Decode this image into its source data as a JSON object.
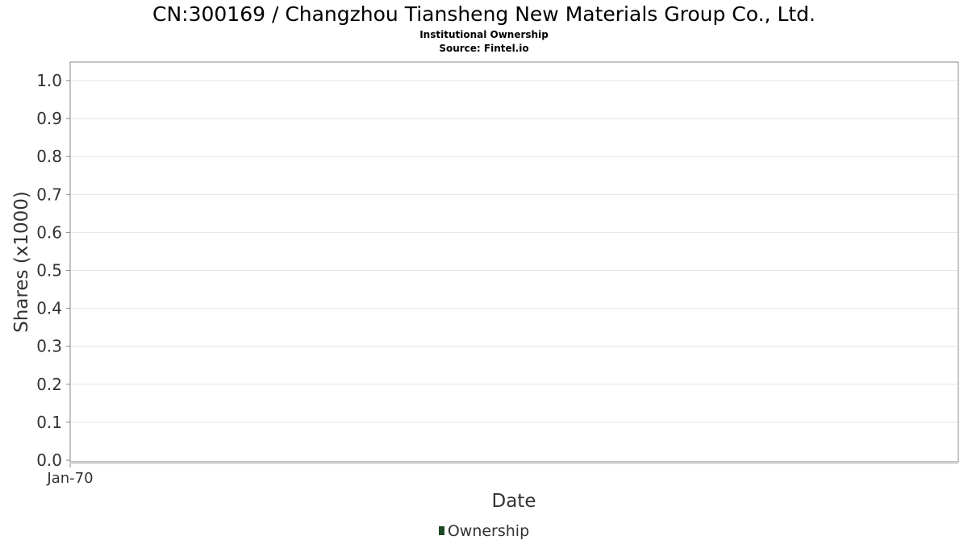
{
  "title": "CN:300169 / Changzhou Tiansheng New Materials Group Co., Ltd.",
  "subtitle_1": "Institutional Ownership",
  "subtitle_2": "Source: Fintel.io",
  "chart_data": {
    "type": "bar",
    "title": "CN:300169 / Changzhou Tiansheng New Materials Group Co., Ltd.",
    "xlabel": "Date",
    "ylabel": "Shares (x1000)",
    "x_tick_labels": [
      "Jan-70"
    ],
    "y_tick_labels": [
      "0.0",
      "0.1",
      "0.2",
      "0.3",
      "0.4",
      "0.5",
      "0.6",
      "0.7",
      "0.8",
      "0.9",
      "1.0"
    ],
    "ylim": [
      0,
      1.0
    ],
    "grid": true,
    "legend_position": "bottom",
    "series": [
      {
        "name": "Ownership",
        "color": "#1b4a23",
        "values": []
      }
    ]
  },
  "legend": {
    "label": "Ownership",
    "color": "#1b4a23"
  }
}
